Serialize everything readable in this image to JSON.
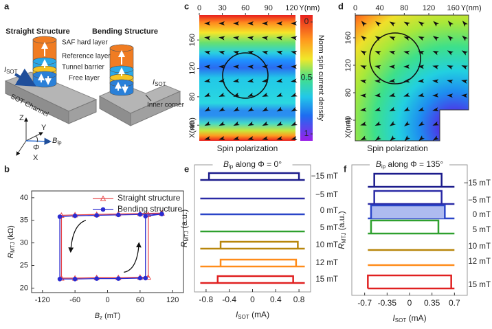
{
  "panel_labels": [
    "a",
    "b",
    "c",
    "d",
    "e",
    "f"
  ],
  "schematic": {
    "titles": [
      "Straight Structure",
      "Bending Structure"
    ],
    "layers": [
      "SAF hard layer",
      "Reference layer",
      "Tunnel barrier",
      "Free layer"
    ],
    "current_left": [
      "I",
      "SOT"
    ],
    "current_right": [
      "I",
      "SOT"
    ],
    "channel": "SOT Channel",
    "inner_corner": "Inner corner",
    "axes": {
      "z": "Z",
      "y": "Y",
      "x": "X",
      "angle": "Φ",
      "field": [
        "B",
        "ip"
      ]
    }
  },
  "chart_data": [
    {
      "type": "line",
      "xlabel": [
        "B",
        "z",
        " (mT)"
      ],
      "ylabel": [
        "R",
        "MTJ",
        " (kΩ)"
      ],
      "xlim": [
        -140,
        140
      ],
      "ylim": [
        19,
        41.5
      ],
      "xticks": [
        -120,
        -60,
        0,
        60,
        120
      ],
      "yticks": [
        20,
        25,
        30,
        35,
        40
      ],
      "legend": "upper right",
      "series": [
        {
          "name": "Straight structure",
          "color": "#e8474a",
          "marker": "triangle",
          "x": [
            100,
            60,
            20,
            -20,
            -60,
            -85,
            -85,
            -60,
            -20,
            20,
            60,
            75,
            75,
            100
          ],
          "values": [
            36.6,
            36.5,
            36.4,
            36.3,
            36.2,
            36.1,
            22.2,
            22.2,
            22.3,
            22.3,
            22.4,
            22.4,
            36.3,
            36.6
          ]
        },
        {
          "name": "Bending structure",
          "color": "#2b2bd0",
          "marker": "circle",
          "x": [
            100,
            60,
            20,
            -20,
            -60,
            -88,
            -88,
            -60,
            -20,
            20,
            60,
            70,
            70,
            100
          ],
          "values": [
            36.4,
            36.3,
            36.2,
            36.1,
            36.0,
            35.8,
            22.0,
            22.0,
            22.1,
            22.1,
            22.2,
            22.2,
            35.9,
            36.4
          ]
        }
      ]
    },
    {
      "type": "heatmap",
      "xlabel": "Y(nm)",
      "ylabel": "X(nm)",
      "caption": "Spin polarization",
      "xlim": [
        0,
        125
      ],
      "ylim": [
        18,
        195
      ],
      "xticks": [
        0,
        30,
        60,
        90,
        120
      ],
      "yticks": [
        40,
        80,
        120,
        160
      ],
      "colorbar_label": "Norm spin current density",
      "clim": [
        0,
        1
      ],
      "colorbar_ticks": [
        0,
        0.5,
        1
      ]
    },
    {
      "type": "heatmap",
      "xlabel": "Y(nm)",
      "ylabel": "X(nm)",
      "caption": "Spin polarization",
      "xlim": [
        0,
        185
      ],
      "ylim": [
        10,
        193
      ],
      "xticks": [
        0,
        40,
        80,
        120,
        160
      ],
      "yticks": [
        40,
        80,
        120,
        160
      ]
    },
    {
      "type": "loops",
      "title": [
        "B",
        "ip",
        " along Φ = 0°"
      ],
      "xlabel": [
        "I",
        "SOT",
        " (mA)"
      ],
      "ylabel": [
        "R",
        "MTJ",
        " (a.u.)"
      ],
      "xlim": [
        -1,
        1
      ],
      "xticks": [
        -0.8,
        -0.4,
        0,
        0.4,
        0.8
      ],
      "sweep_range": [
        -0.9,
        0.9
      ],
      "series": [
        {
          "name": "−15 mT",
          "color": "#1c1c8c",
          "values": [
            -0.75,
            0.8
          ]
        },
        {
          "name": "−5 mT",
          "color": "#2a2aa6"
        },
        {
          "name": "0 mT",
          "color": "#2a45c8"
        },
        {
          "name": "5 mT",
          "color": "#2ea02e"
        },
        {
          "name": "10 mT",
          "color": "#b8860b",
          "values": [
            -0.55,
            0.78
          ]
        },
        {
          "name": "12 mT",
          "color": "#ff8c1a",
          "values": [
            -0.55,
            0.75
          ]
        },
        {
          "name": "15 mT",
          "color": "#e02020",
          "values": [
            -0.6,
            0.7
          ]
        }
      ]
    },
    {
      "type": "loops",
      "title": [
        "B",
        "ip",
        " along Φ = 135°"
      ],
      "xlabel": [
        "I",
        "SOT",
        " (mA)"
      ],
      "ylabel": [
        "R",
        "MTJ",
        " (a.u.)"
      ],
      "xlim": [
        -0.9,
        0.9
      ],
      "xticks": [
        -0.7,
        -0.35,
        0,
        0.35,
        0.7
      ],
      "sweep_range": [
        -0.65,
        0.7
      ],
      "series": [
        {
          "name": "−15 mT",
          "color": "#1c1c8c",
          "values": [
            -0.55,
            0.5
          ]
        },
        {
          "name": "−5 mT",
          "color": "#2a2aa6",
          "values": [
            -0.55,
            0.5
          ]
        },
        {
          "name": "0 mT",
          "color": "#2a45c8",
          "values": [
            -0.6,
            0.55
          ],
          "fill": "#aebbf0"
        },
        {
          "name": "5 mT",
          "color": "#2ea02e",
          "values": [
            -0.6,
            0.45
          ]
        },
        {
          "name": "10 mT",
          "color": "#b8860b"
        },
        {
          "name": "12 mT",
          "color": "#ff8c1a"
        },
        {
          "name": "15 mT",
          "color": "#e02020",
          "values": [
            -0.65,
            0.65
          ]
        }
      ]
    }
  ]
}
